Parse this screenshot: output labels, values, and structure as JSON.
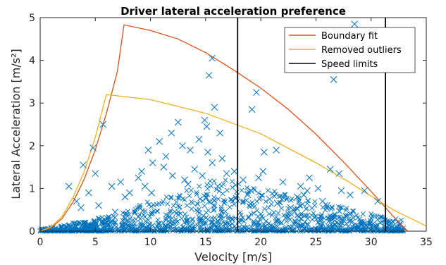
{
  "chart_data": {
    "type": "scatter",
    "title": "Driver lateral acceleration preference",
    "xlabel": "Velocity [m/s]",
    "ylabel": "Lateral Acceleration [m/s²]",
    "xlim": [
      0,
      35
    ],
    "ylim": [
      0,
      5
    ],
    "xticks": [
      0,
      5,
      10,
      15,
      20,
      25,
      30,
      35
    ],
    "yticks": [
      0,
      1,
      2,
      3,
      4,
      5
    ],
    "grid": false,
    "legend_position": "top-right",
    "legend": [
      "Boundary fit",
      "Removed outliers",
      "Speed limits"
    ],
    "colors": {
      "scatter": "#0072BD",
      "boundary_fit": "#D95319",
      "removed_outliers": "#EDB120",
      "speed_limits": "#000000"
    },
    "series": [
      {
        "name": "Boundary fit",
        "kind": "line",
        "x": [
          0,
          1,
          2,
          3,
          4,
          5,
          6,
          7,
          7.6,
          10,
          12.5,
          15,
          17.5,
          20,
          22.5,
          25,
          27.5,
          30,
          32,
          33.3
        ],
        "y": [
          0,
          0.08,
          0.3,
          0.69,
          1.22,
          1.91,
          2.75,
          3.74,
          4.83,
          4.7,
          4.5,
          4.18,
          3.78,
          3.35,
          2.85,
          2.27,
          1.62,
          0.93,
          0.35,
          0
        ]
      },
      {
        "name": "Removed outliers",
        "kind": "line",
        "x": [
          0,
          1,
          2,
          3,
          4,
          5,
          6,
          10,
          15,
          20,
          25,
          28,
          30,
          32,
          35
        ],
        "y": [
          0,
          0.1,
          0.35,
          0.8,
          1.4,
          2.2,
          3.2,
          3.08,
          2.76,
          2.28,
          1.6,
          1.15,
          0.82,
          0.5,
          0.12
        ]
      },
      {
        "name": "Speed limits",
        "kind": "vline",
        "x": [
          17.9,
          31.3
        ]
      },
      {
        "name": "",
        "kind": "scatter",
        "marker": "x",
        "x": [
          5.7,
          3.9,
          4.8,
          5.0,
          3.3,
          2.6,
          15.6,
          15.3,
          15.8,
          19.6,
          19.2,
          28.5,
          26.6,
          21.4,
          19.8,
          20.2,
          20.3,
          23.6,
          26.3,
          27.1,
          22.0,
          24.2,
          24.4,
          23.9,
          25.2,
          27.3,
          14.9,
          12.5,
          10.8,
          9.8,
          11.9,
          15.1,
          16.3,
          13.6,
          14.4,
          10.2,
          9.2,
          8.9,
          11.4,
          12.9,
          16.5,
          14.0,
          13.1,
          15.6,
          16.9,
          17.6,
          8.1,
          7.3,
          9.5,
          10.1,
          12.0,
          11.2,
          13.4,
          14.7,
          15.2,
          16.1,
          18.4,
          19.1,
          18.8,
          20.8,
          21.5,
          22.7,
          23.3,
          25.6,
          26.0,
          28.1,
          29.4,
          30.6,
          6.5,
          7.7,
          4.4,
          3.7,
          5.3,
          6.8
        ],
        "y": [
          2.5,
          1.55,
          1.95,
          1.35,
          0.7,
          1.05,
          4.05,
          3.65,
          2.9,
          3.25,
          2.85,
          4.85,
          3.55,
          1.9,
          1.25,
          1.4,
          1.85,
          1.05,
          1.45,
          1.35,
          1.15,
          0.95,
          1.25,
          0.85,
          1.0,
          0.95,
          2.6,
          2.55,
          2.1,
          1.9,
          2.3,
          2.45,
          2.3,
          1.9,
          2.15,
          1.6,
          1.4,
          1.25,
          1.75,
          2.0,
          1.7,
          1.45,
          1.2,
          1.6,
          1.35,
          1.4,
          0.9,
          1.15,
          1.05,
          0.9,
          1.3,
          1.5,
          1.1,
          1.3,
          1.85,
          1.05,
          1.2,
          0.95,
          0.85,
          0.75,
          0.65,
          0.55,
          0.8,
          0.7,
          0.6,
          0.85,
          0.95,
          0.7,
          1.05,
          0.8,
          0.9,
          0.55,
          0.6,
          0.45
        ]
      }
    ]
  }
}
